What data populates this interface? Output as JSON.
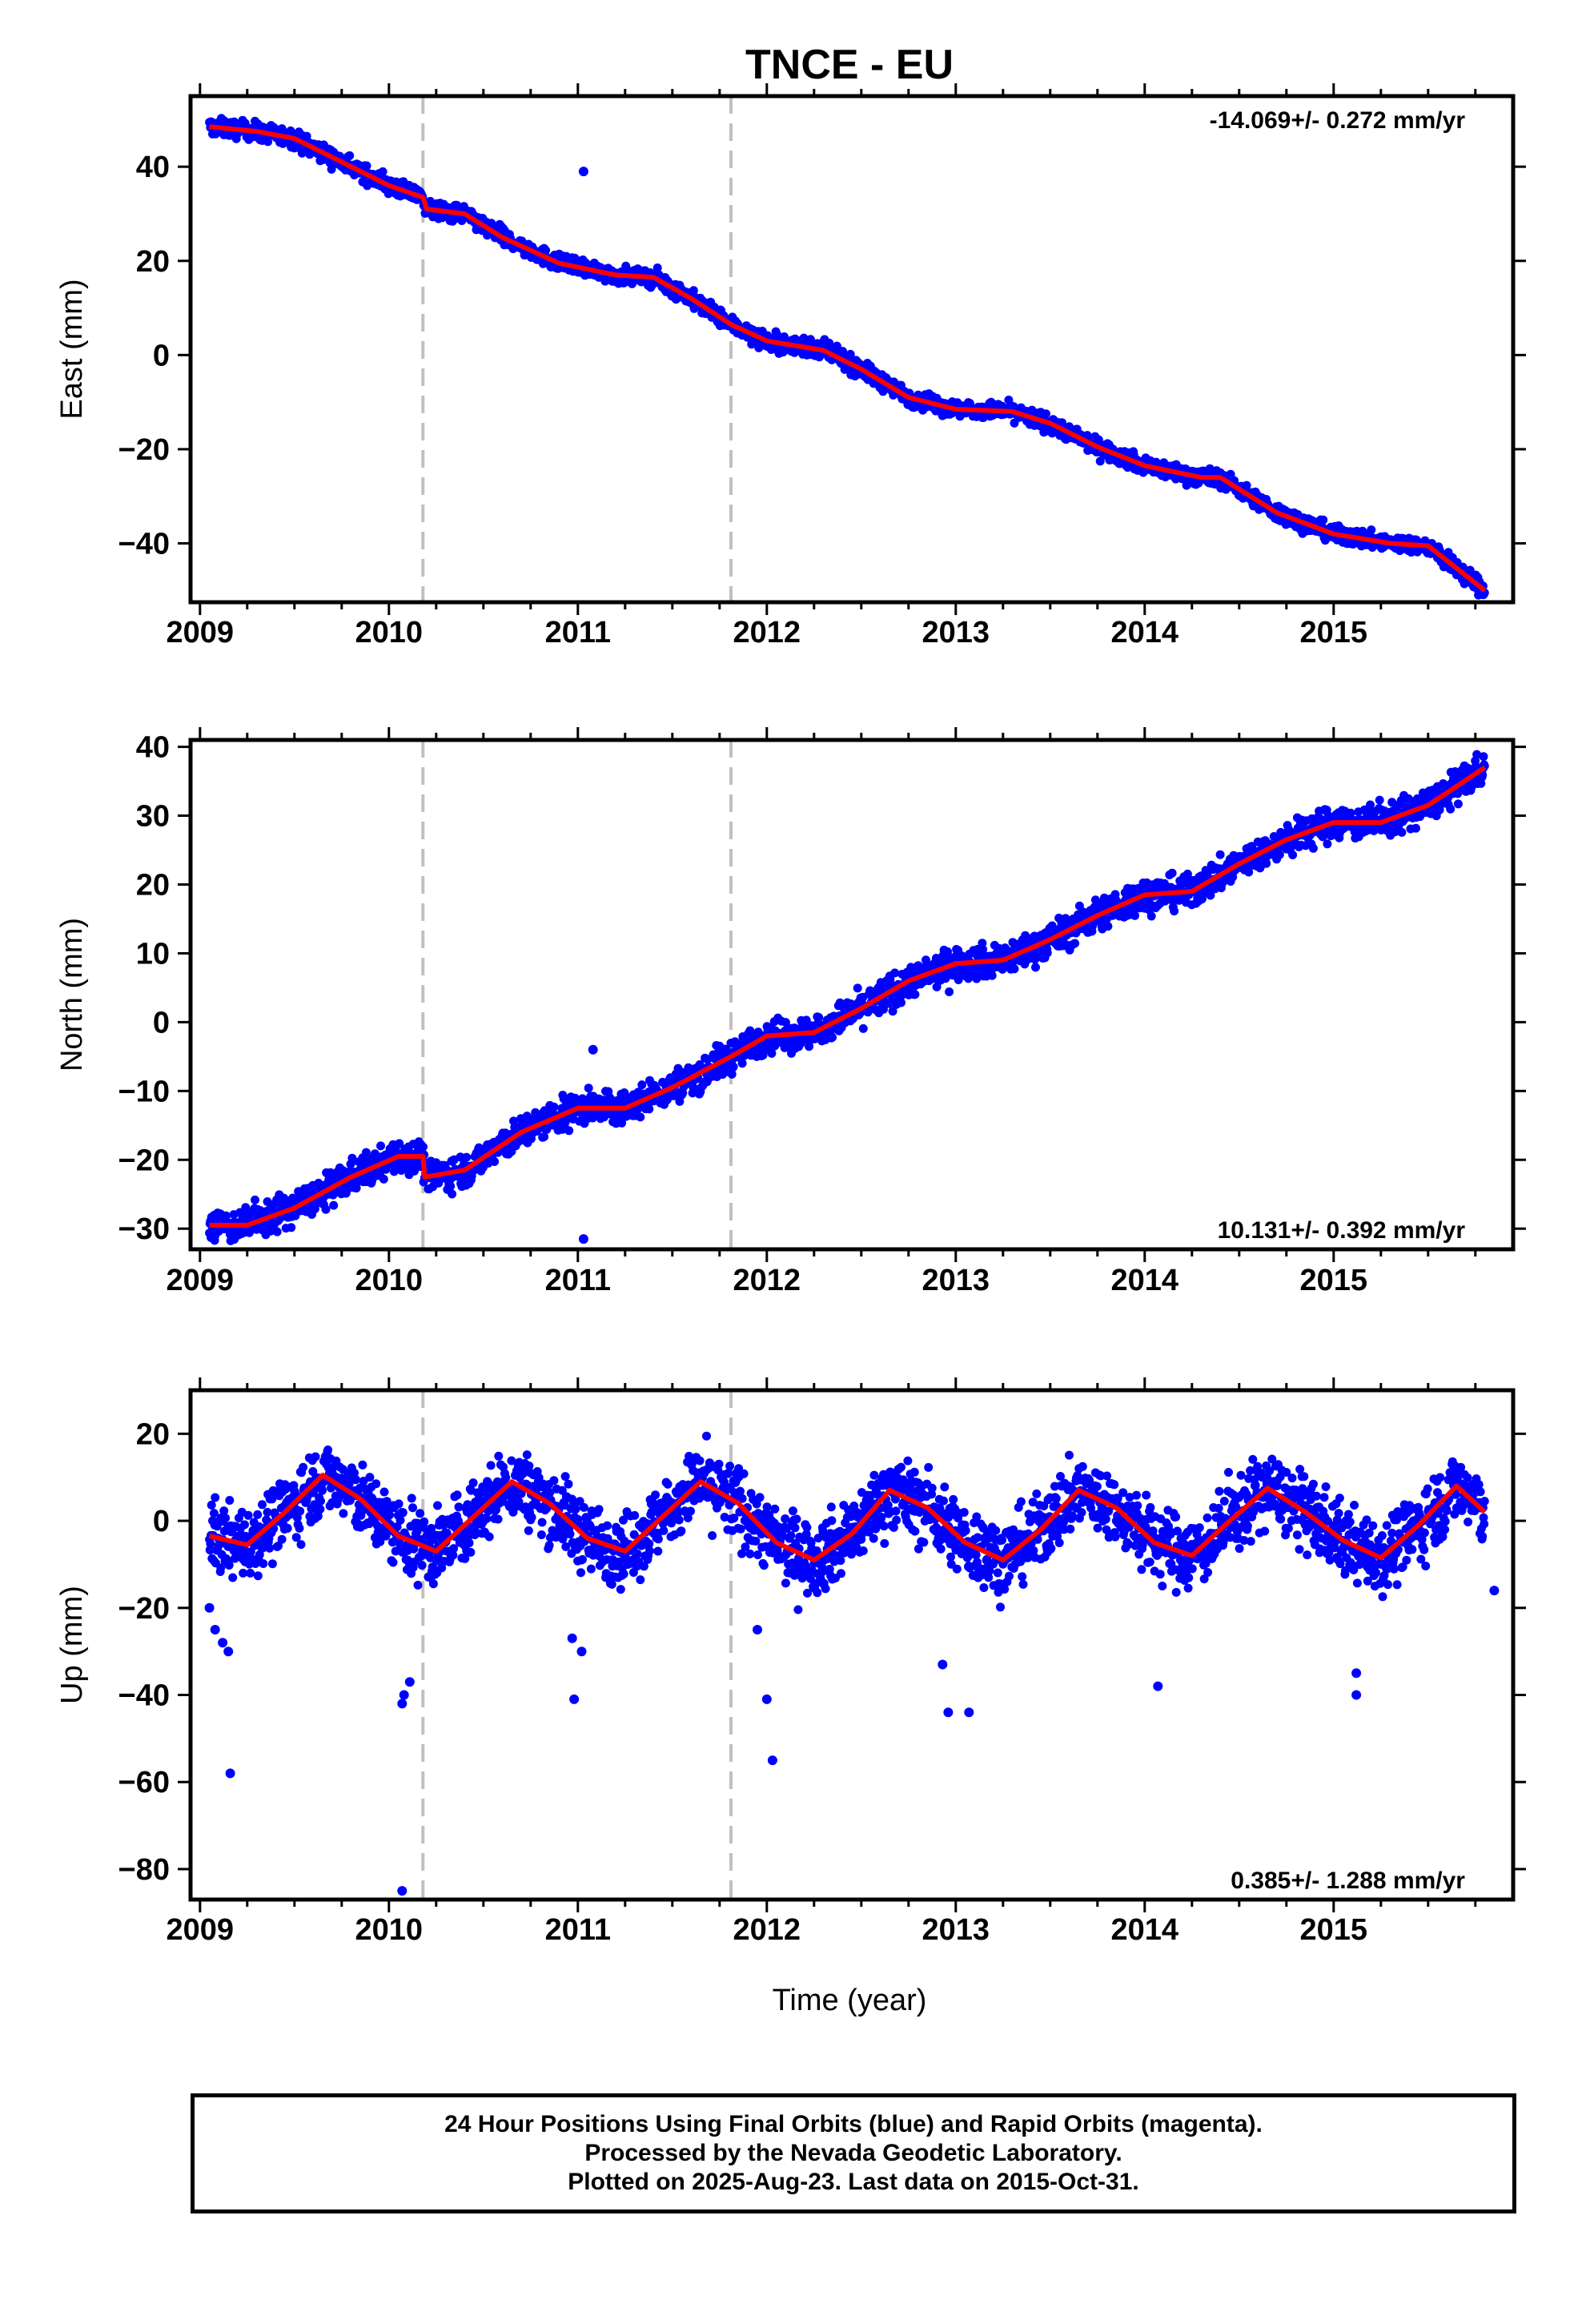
{
  "title": "TNCE - EU",
  "xlabel": "Time (year)",
  "footer": {
    "line1": "24 Hour Positions Using Final Orbits (blue) and Rapid Orbits (magenta).",
    "line2": "Processed by the Nevada Geodetic Laboratory.",
    "line3": "Plotted on 2025-Aug-23. Last data on 2015-Oct-31."
  },
  "colors": {
    "points": "#0000ff",
    "fit": "#ff0000",
    "breaks": "#c0c0c0",
    "frame": "#000000"
  },
  "chart_data": [
    {
      "type": "scatter",
      "ylabel": "East (mm)",
      "rate_text": "-14.069+/- 0.272 mm/yr",
      "rate_position": "top-right",
      "xlim": [
        2008.95,
        2015.95
      ],
      "ylim": [
        -52.5,
        55
      ],
      "x_ticks": [
        2009,
        2010,
        2011,
        2012,
        2013,
        2014,
        2015
      ],
      "y_ticks": [
        40,
        20,
        0,
        -20,
        -40
      ],
      "y_tick_labels": [
        "40",
        "20",
        "0",
        "−20",
        "−40"
      ],
      "breaks": [
        2010.18,
        2011.81
      ],
      "fit": {
        "x": [
          2009.05,
          2009.3,
          2009.5,
          2009.75,
          2010.0,
          2010.18,
          2010.2,
          2010.4,
          2010.6,
          2010.9,
          2011.2,
          2011.4,
          2011.6,
          2011.81,
          2012.0,
          2012.3,
          2012.5,
          2012.75,
          2013.0,
          2013.3,
          2013.5,
          2013.75,
          2014.0,
          2014.3,
          2014.4,
          2014.7,
          2015.0,
          2015.3,
          2015.5,
          2015.8
        ],
        "y": [
          48.5,
          47.5,
          46.0,
          41.0,
          36.0,
          33.5,
          31.0,
          30.0,
          25.0,
          19.5,
          17.0,
          16.5,
          12.0,
          6.5,
          3.0,
          1.0,
          -3.0,
          -9.0,
          -11.5,
          -12.0,
          -14.5,
          -19.5,
          -23.5,
          -26.0,
          -26.0,
          -33.5,
          -38.0,
          -40.0,
          -40.5,
          -50.0
        ]
      },
      "outliers": [
        [
          2011.03,
          39
        ]
      ]
    },
    {
      "type": "scatter",
      "ylabel": "North (mm)",
      "rate_text": "10.131+/- 0.392 mm/yr",
      "rate_position": "bottom-right",
      "xlim": [
        2008.95,
        2015.95
      ],
      "ylim": [
        -33,
        41
      ],
      "x_ticks": [
        2009,
        2010,
        2011,
        2012,
        2013,
        2014,
        2015
      ],
      "y_ticks": [
        40,
        30,
        20,
        10,
        0,
        -10,
        -20,
        -30
      ],
      "y_tick_labels": [
        "40",
        "30",
        "20",
        "10",
        "0",
        "−10",
        "−20",
        "−30"
      ],
      "breaks": [
        2010.18,
        2011.81
      ],
      "fit": {
        "x": [
          2009.05,
          2009.25,
          2009.5,
          2009.8,
          2010.05,
          2010.18,
          2010.19,
          2010.4,
          2010.7,
          2011.0,
          2011.25,
          2011.5,
          2011.81,
          2012.0,
          2012.25,
          2012.5,
          2012.75,
          2013.0,
          2013.25,
          2013.5,
          2013.75,
          2014.0,
          2014.25,
          2014.5,
          2014.75,
          2015.0,
          2015.25,
          2015.5,
          2015.8
        ],
        "y": [
          -29.5,
          -29.5,
          -27.0,
          -22.5,
          -19.5,
          -19.5,
          -22.5,
          -21.5,
          -16.0,
          -12.5,
          -12.5,
          -9.5,
          -5.0,
          -2.0,
          -1.5,
          2.0,
          6.0,
          8.5,
          9.0,
          12.0,
          15.5,
          18.5,
          19.0,
          23.0,
          26.5,
          29.0,
          29.0,
          31.5,
          37.0
        ]
      },
      "outliers": [
        [
          2011.03,
          -31.5
        ],
        [
          2011.08,
          -4
        ]
      ]
    },
    {
      "type": "scatter",
      "ylabel": "Up (mm)",
      "rate_text": "0.385+/- 1.288 mm/yr",
      "rate_position": "bottom-right",
      "xlim": [
        2008.95,
        2015.95
      ],
      "ylim": [
        -87,
        30
      ],
      "x_ticks": [
        2009,
        2010,
        2011,
        2012,
        2013,
        2014,
        2015
      ],
      "y_ticks": [
        20,
        0,
        -20,
        -40,
        -60,
        -80
      ],
      "y_tick_labels": [
        "20",
        "0",
        "−20",
        "−40",
        "−60",
        "−80"
      ],
      "breaks": [
        2010.18,
        2011.81
      ],
      "fit": {
        "x": [
          2009.05,
          2009.25,
          2009.45,
          2009.65,
          2009.85,
          2010.05,
          2010.25,
          2010.45,
          2010.65,
          2010.85,
          2011.05,
          2011.25,
          2011.45,
          2011.65,
          2011.85,
          2012.05,
          2012.25,
          2012.45,
          2012.65,
          2012.85,
          2013.05,
          2013.25,
          2013.45,
          2013.65,
          2013.85,
          2014.05,
          2014.25,
          2014.45,
          2014.65,
          2014.85,
          2015.05,
          2015.25,
          2015.45,
          2015.65,
          2015.8
        ],
        "y": [
          -3.5,
          -5.5,
          2.0,
          10.5,
          5.0,
          -3.5,
          -7.0,
          1.0,
          9.0,
          4.0,
          -4.0,
          -7.0,
          1.0,
          9.0,
          4.0,
          -5.0,
          -9.0,
          -3.0,
          7.0,
          3.0,
          -5.0,
          -9.0,
          -2.0,
          7.0,
          3.0,
          -5.0,
          -8.0,
          0.0,
          7.5,
          2.0,
          -4.5,
          -8.5,
          -1.0,
          8.0,
          2.0
        ]
      },
      "outliers": [
        [
          2009.05,
          -20
        ],
        [
          2009.08,
          -25
        ],
        [
          2009.12,
          -28
        ],
        [
          2009.15,
          -30
        ],
        [
          2009.16,
          -58
        ],
        [
          2010.07,
          -42
        ],
        [
          2010.08,
          -40
        ],
        [
          2010.11,
          -37
        ],
        [
          2010.07,
          -85
        ],
        [
          2010.97,
          -27
        ],
        [
          2011.02,
          -30
        ],
        [
          2010.98,
          -41
        ],
        [
          2011.95,
          -25
        ],
        [
          2012.0,
          -41
        ],
        [
          2012.03,
          -55
        ],
        [
          2012.93,
          -33
        ],
        [
          2012.96,
          -44
        ],
        [
          2013.07,
          -44
        ],
        [
          2014.07,
          -38
        ],
        [
          2015.12,
          -35
        ],
        [
          2015.12,
          -40
        ],
        [
          2015.85,
          -16
        ]
      ]
    }
  ]
}
